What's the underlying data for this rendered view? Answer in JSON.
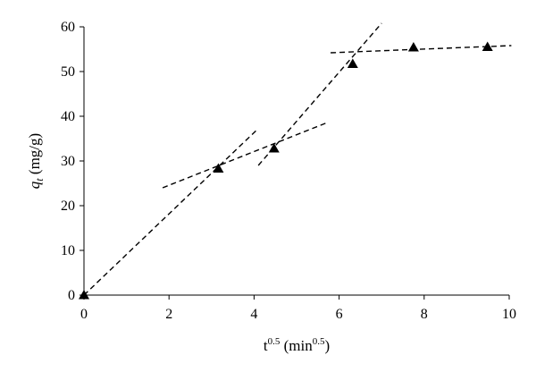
{
  "chart_data": {
    "type": "scatter",
    "title": "",
    "xlabel": {
      "base": "t",
      "base_sup": "0.5",
      "unit_open": " (min",
      "unit_sup": "0.5",
      "unit_close": ")"
    },
    "ylabel": {
      "symbol": "q",
      "symbol_sub": "t",
      "unit": " (mg/g)"
    },
    "xlim": [
      0,
      10
    ],
    "ylim": [
      0,
      60
    ],
    "x_ticks": [
      "0",
      "2",
      "4",
      "6",
      "8",
      "10"
    ],
    "y_ticks": [
      "0",
      "10",
      "20",
      "30",
      "40",
      "50",
      "60"
    ],
    "grid": false,
    "marker": "triangle",
    "marker_color": "#000000",
    "line_style": "dashed",
    "line_color": "#000000",
    "points": [
      {
        "x": 0.0,
        "y": 0.0
      },
      {
        "x": 3.16,
        "y": 28.3
      },
      {
        "x": 4.47,
        "y": 32.8
      },
      {
        "x": 6.32,
        "y": 51.7
      },
      {
        "x": 7.75,
        "y": 55.4
      },
      {
        "x": 9.49,
        "y": 55.5
      }
    ],
    "fit_lines": [
      {
        "x": [
          0.0,
          4.05
        ],
        "y": [
          0.0,
          36.8
        ]
      },
      {
        "x": [
          1.85,
          5.7
        ],
        "y": [
          24.0,
          38.5
        ]
      },
      {
        "x": [
          4.1,
          7.0
        ],
        "y": [
          29.0,
          60.8
        ]
      },
      {
        "x": [
          5.8,
          10.05
        ],
        "y": [
          54.2,
          55.8
        ]
      }
    ]
  }
}
